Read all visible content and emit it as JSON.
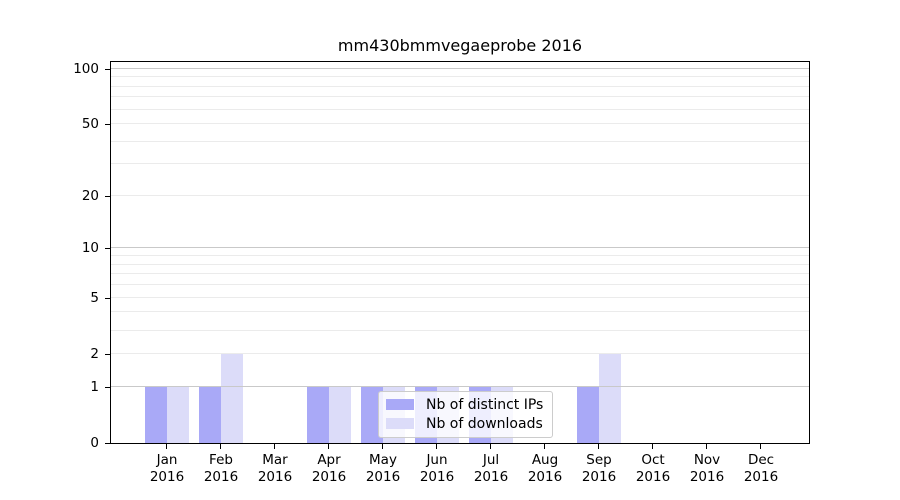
{
  "chart_data": {
    "type": "bar",
    "title": "mm430bmmvegaeprobe 2016",
    "x_year": "2016",
    "categories": [
      "Jan",
      "Feb",
      "Mar",
      "Apr",
      "May",
      "Jun",
      "Jul",
      "Aug",
      "Sep",
      "Oct",
      "Nov",
      "Dec"
    ],
    "series": [
      {
        "name": "Nb of distinct IPs",
        "color": "#a9a9f7",
        "values": [
          1,
          1,
          0,
          1,
          1,
          1,
          1,
          0,
          1,
          0,
          0,
          0
        ]
      },
      {
        "name": "Nb of downloads",
        "color": "#dcdcf9",
        "values": [
          1,
          2,
          0,
          1,
          1,
          1,
          1,
          0,
          2,
          0,
          0,
          0
        ]
      }
    ],
    "xlabel": "",
    "ylabel": "",
    "yscale": "log1p",
    "ylim": [
      0,
      111.3
    ],
    "ytick_values": [
      0,
      1,
      2,
      5,
      10,
      20,
      50,
      100
    ],
    "ytick_labels": [
      "0",
      "1",
      "2",
      "5",
      "10",
      "20",
      "50",
      "100"
    ],
    "major_gridlines": [
      1,
      10,
      100
    ],
    "minor_gridlines": [
      2,
      3,
      4,
      5,
      6,
      7,
      8,
      9,
      20,
      30,
      40,
      50,
      60,
      70,
      80,
      90
    ],
    "grid": "on",
    "legend_position": "lower center",
    "colors": {
      "major_grid": "#c9c9c9",
      "minor_grid": "#ebebeb",
      "axis": "#000000",
      "legend_border": "#cccccc",
      "background": "#ffffff"
    }
  }
}
